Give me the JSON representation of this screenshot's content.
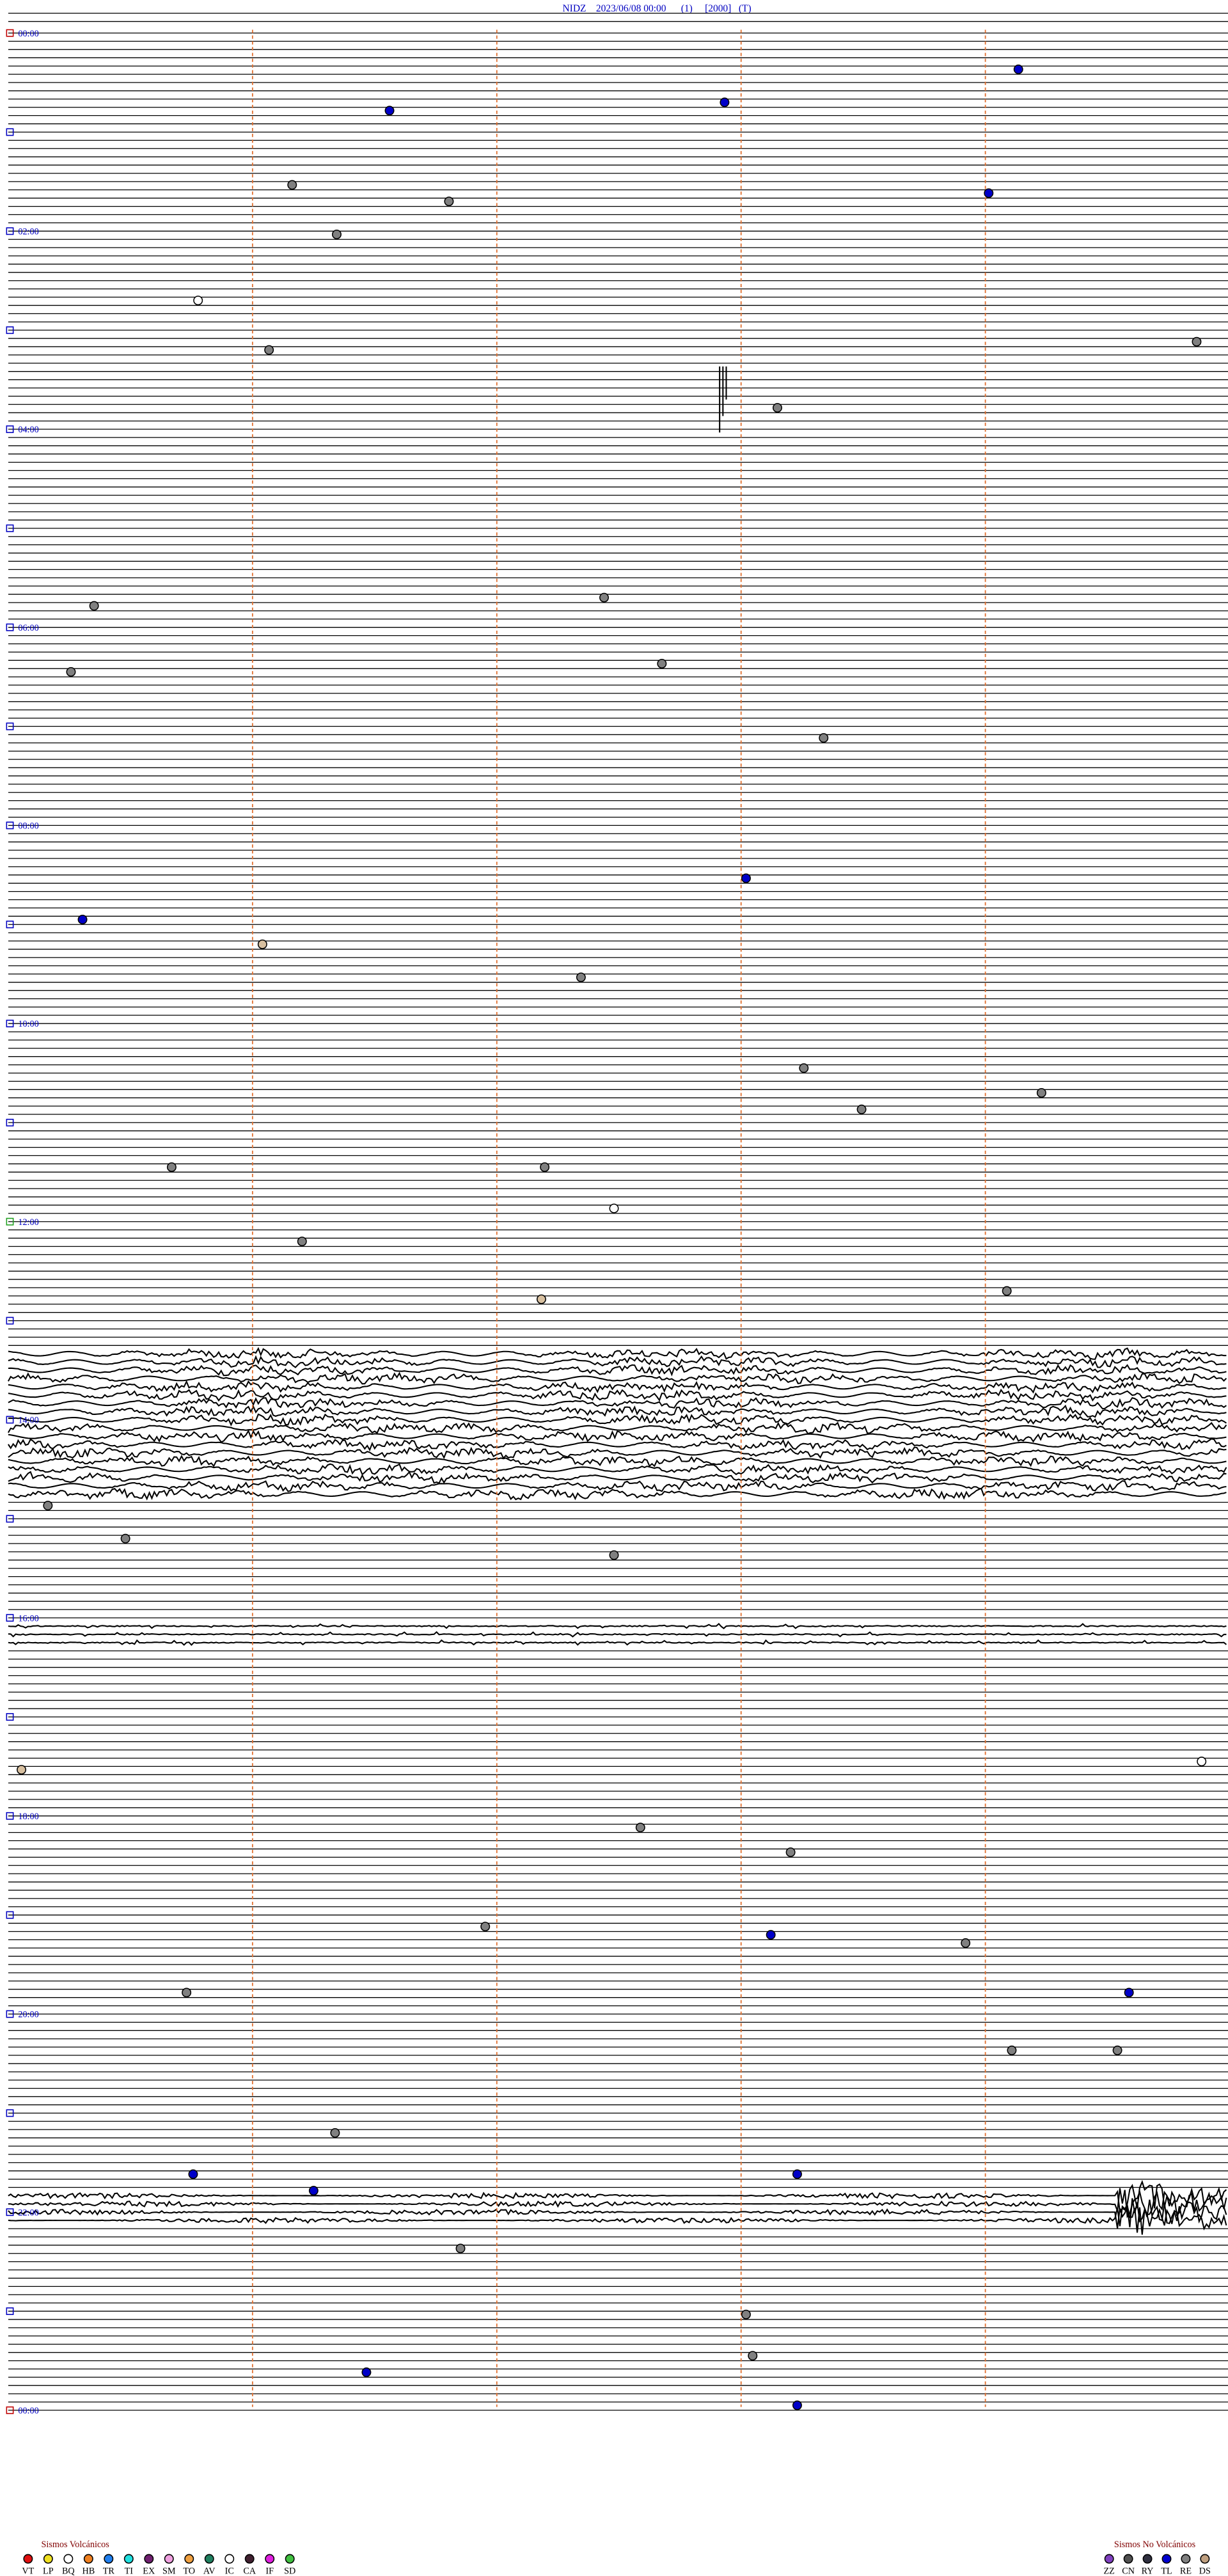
{
  "header": {
    "title": "NIDZ    2023/06/08 00:00      (1)     [2000]   (T)"
  },
  "hour_labels": [
    "00:00",
    "02:00",
    "04:00",
    "06:00",
    "08:00",
    "10:00",
    "12:00",
    "14:00",
    "16:00",
    "18:00",
    "20:00",
    "22:00",
    "00:00"
  ],
  "legend_volcanic": {
    "title": "Sismos Volcánicos",
    "items": [
      {
        "code": "VT",
        "color": "#e01010"
      },
      {
        "code": "LP",
        "color": "#f0e020"
      },
      {
        "code": "BQ",
        "color": "#ffffff"
      },
      {
        "code": "HB",
        "color": "#f08020"
      },
      {
        "code": "TR",
        "color": "#2080f0"
      },
      {
        "code": "TI",
        "color": "#20e0e0"
      },
      {
        "code": "EX",
        "color": "#702070"
      },
      {
        "code": "SM",
        "color": "#f0a0e0"
      },
      {
        "code": "TO",
        "color": "#f0a040"
      },
      {
        "code": "AV",
        "color": "#208060"
      },
      {
        "code": "IC",
        "color": "#ffffff"
      },
      {
        "code": "CA",
        "color": "#402030"
      },
      {
        "code": "IF",
        "color": "#e020e0"
      },
      {
        "code": "SD",
        "color": "#40c040"
      }
    ]
  },
  "legend_non_volcanic": {
    "title": "Sismos No Volcánicos",
    "items": [
      {
        "code": "ZZ",
        "color": "#8040c0"
      },
      {
        "code": "CN",
        "color": "#505050"
      },
      {
        "code": "RY",
        "color": "#303040"
      },
      {
        "code": "TL",
        "color": "#0000d0"
      },
      {
        "code": "RE",
        "color": "#808080"
      },
      {
        "code": "DS",
        "color": "#c0a080"
      }
    ]
  }
}
